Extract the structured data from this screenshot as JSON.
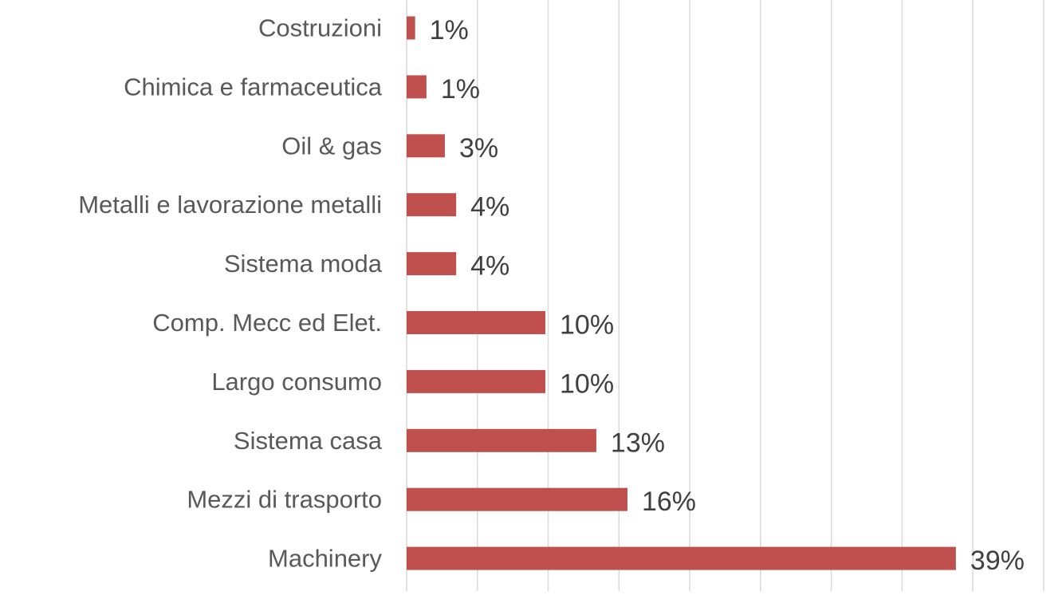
{
  "chart_data": {
    "type": "bar",
    "orientation": "horizontal",
    "categories": [
      "Costruzioni",
      "Chimica e farmaceutica",
      "Oil & gas ",
      "Metalli e lavorazione metalli",
      "Sistema moda",
      "Comp. Mecc ed Elet.",
      "Largo consumo ",
      "Sistema casa",
      "Mezzi di trasporto",
      "Machinery "
    ],
    "values": [
      0.6,
      1.4,
      2.7,
      3.5,
      3.5,
      9.8,
      9.8,
      13.4,
      15.6,
      38.8
    ],
    "value_labels": [
      "1%",
      "1%",
      "3%",
      "4%",
      "4%",
      "10%",
      "10%",
      "13%",
      "16%",
      "39%"
    ],
    "xlim": [
      0,
      45
    ],
    "x_grid_step": 5,
    "grid": true,
    "bar_color": "#c0504d"
  }
}
